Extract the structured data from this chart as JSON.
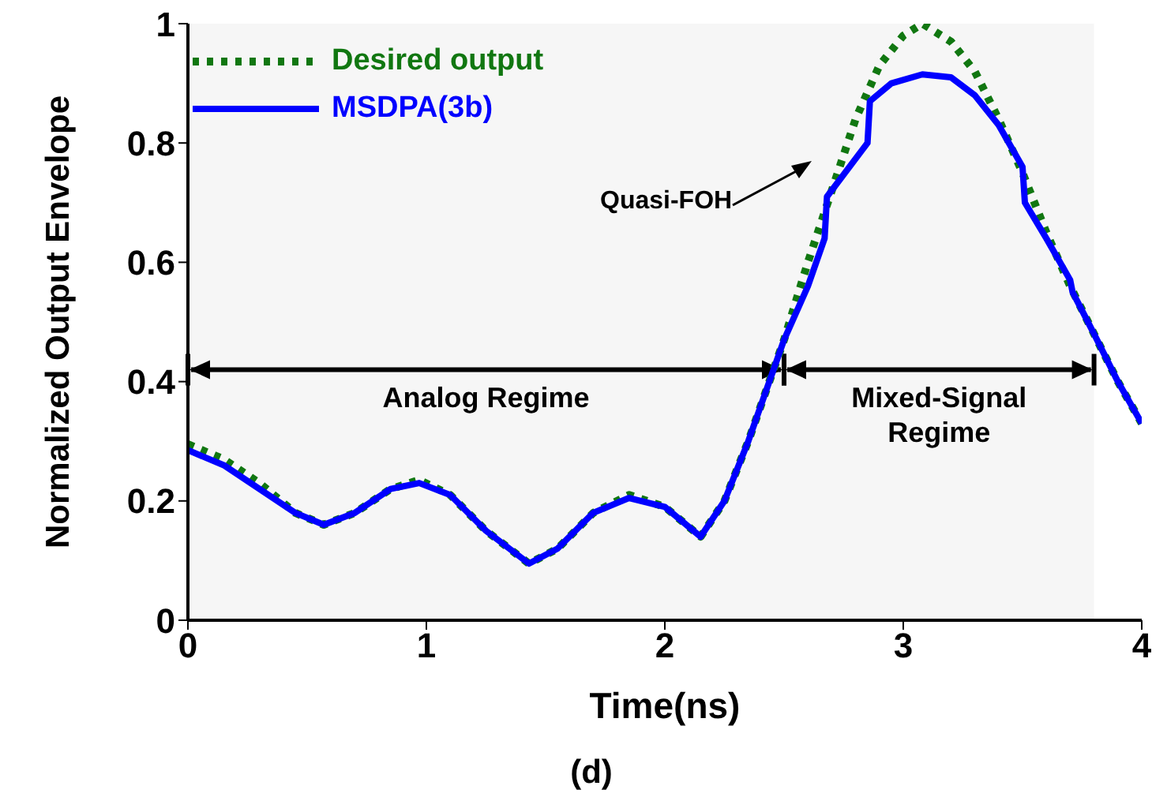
{
  "chart_data": {
    "type": "line",
    "xlabel": "Time(ns)",
    "ylabel": "Normalized Output Envelope",
    "xlim": [
      0,
      4
    ],
    "xticks": [
      0,
      1,
      2,
      3,
      4
    ],
    "ylim": [
      0,
      1
    ],
    "yticks": [
      0,
      0.2,
      0.4,
      0.6,
      0.8,
      1
    ],
    "legend": "top left",
    "marker": "none",
    "series": [
      {
        "name": "Desired output",
        "color": "#117711",
        "line_style": "dotted",
        "x": [
          0,
          0.15,
          0.3,
          0.45,
          0.57,
          0.7,
          0.85,
          0.97,
          1.1,
          1.25,
          1.43,
          1.55,
          1.7,
          1.85,
          2.0,
          2.15,
          2.25,
          2.35,
          2.5,
          2.6,
          2.7,
          2.8,
          2.9,
          3.0,
          3.08,
          3.2,
          3.3,
          3.4,
          3.5,
          3.6,
          3.7,
          3.8,
          3.9,
          4.0
        ],
        "values": [
          0.295,
          0.27,
          0.23,
          0.18,
          0.16,
          0.18,
          0.22,
          0.235,
          0.21,
          0.15,
          0.095,
          0.12,
          0.18,
          0.21,
          0.19,
          0.14,
          0.2,
          0.3,
          0.47,
          0.6,
          0.72,
          0.84,
          0.93,
          0.98,
          1.0,
          0.97,
          0.92,
          0.84,
          0.75,
          0.65,
          0.56,
          0.48,
          0.4,
          0.33
        ]
      },
      {
        "name": "MSDPA(3b)",
        "color": "#0000ff",
        "line_style": "solid",
        "x": [
          0,
          0.15,
          0.3,
          0.45,
          0.57,
          0.7,
          0.85,
          0.97,
          1.1,
          1.25,
          1.43,
          1.55,
          1.7,
          1.85,
          2.0,
          2.15,
          2.25,
          2.35,
          2.5,
          2.6,
          2.67,
          2.68,
          2.85,
          2.86,
          2.95,
          3.08,
          3.2,
          3.3,
          3.4,
          3.5,
          3.51,
          3.6,
          3.7,
          3.71,
          3.8,
          3.9,
          4.0
        ],
        "values": [
          0.285,
          0.26,
          0.22,
          0.18,
          0.16,
          0.18,
          0.22,
          0.23,
          0.21,
          0.15,
          0.095,
          0.12,
          0.18,
          0.205,
          0.19,
          0.14,
          0.2,
          0.3,
          0.47,
          0.56,
          0.64,
          0.71,
          0.8,
          0.87,
          0.9,
          0.915,
          0.91,
          0.88,
          0.83,
          0.76,
          0.7,
          0.64,
          0.57,
          0.55,
          0.48,
          0.4,
          0.33
        ]
      }
    ],
    "bands": [
      {
        "axis": "x",
        "from": 0,
        "to": 2.5,
        "label": "Analog Regime"
      },
      {
        "axis": "x",
        "from": 2.5,
        "to": 3.8,
        "label": "Mixed-Signal Regime"
      }
    ],
    "annotations": [
      "Quasi-FOH",
      "(d)"
    ]
  }
}
